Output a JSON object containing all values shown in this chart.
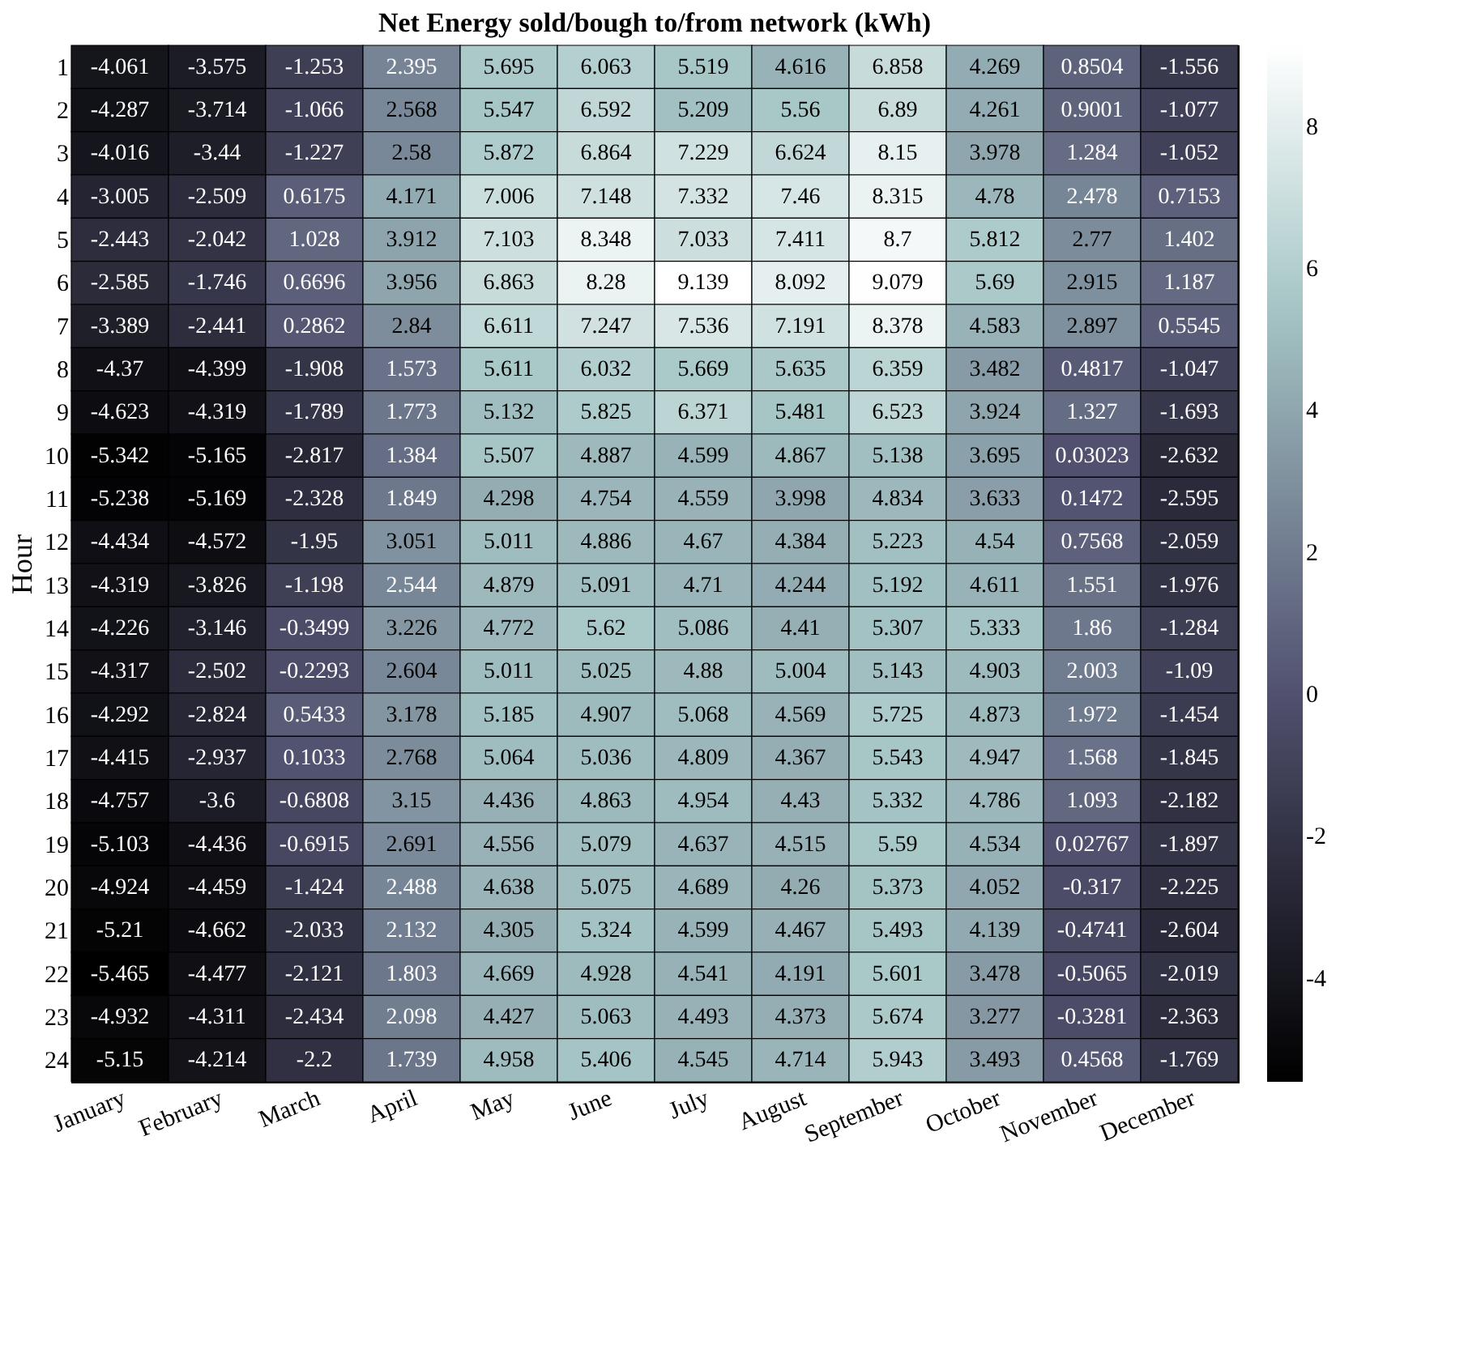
{
  "chart_data": {
    "type": "heatmap",
    "title": "Net Energy sold/bough to/from network (kWh)",
    "ylabel": "Hour",
    "categories": [
      "January",
      "February",
      "March",
      "April",
      "May",
      "June",
      "July",
      "August",
      "September",
      "October",
      "November",
      "December"
    ],
    "y_categories": [
      "1",
      "2",
      "3",
      "4",
      "5",
      "6",
      "7",
      "8",
      "9",
      "10",
      "11",
      "12",
      "13",
      "14",
      "15",
      "16",
      "17",
      "18",
      "19",
      "20",
      "21",
      "22",
      "23",
      "24"
    ],
    "cells": [
      [
        -4.061,
        -3.575,
        -1.253,
        2.395,
        5.695,
        6.063,
        5.519,
        4.616,
        6.858,
        4.269,
        0.8504,
        -1.556
      ],
      [
        -4.287,
        -3.714,
        -1.066,
        2.568,
        5.547,
        6.592,
        5.209,
        5.56,
        6.89,
        4.261,
        0.9001,
        -1.077
      ],
      [
        -4.016,
        -3.44,
        -1.227,
        2.58,
        5.872,
        6.864,
        7.229,
        6.624,
        8.15,
        3.978,
        1.284,
        -1.052
      ],
      [
        -3.005,
        -2.509,
        0.6175,
        4.171,
        7.006,
        7.148,
        7.332,
        7.46,
        8.315,
        4.78,
        2.478,
        0.7153
      ],
      [
        -2.443,
        -2.042,
        1.028,
        3.912,
        7.103,
        8.348,
        7.033,
        7.411,
        8.7,
        5.812,
        2.77,
        1.402
      ],
      [
        -2.585,
        -1.746,
        0.6696,
        3.956,
        6.863,
        8.28,
        9.139,
        8.092,
        9.079,
        5.69,
        2.915,
        1.187
      ],
      [
        -3.389,
        -2.441,
        0.2862,
        2.84,
        6.611,
        7.247,
        7.536,
        7.191,
        8.378,
        4.583,
        2.897,
        0.5545
      ],
      [
        -4.37,
        -4.399,
        -1.908,
        1.573,
        5.611,
        6.032,
        5.669,
        5.635,
        6.359,
        3.482,
        0.4817,
        -1.047
      ],
      [
        -4.623,
        -4.319,
        -1.789,
        1.773,
        5.132,
        5.825,
        6.371,
        5.481,
        6.523,
        3.924,
        1.327,
        -1.693
      ],
      [
        -5.342,
        -5.165,
        -2.817,
        1.384,
        5.507,
        4.887,
        4.599,
        4.867,
        5.138,
        3.695,
        0.03023,
        -2.632
      ],
      [
        -5.238,
        -5.169,
        -2.328,
        1.849,
        4.298,
        4.754,
        4.559,
        3.998,
        4.834,
        3.633,
        0.1472,
        -2.595
      ],
      [
        -4.434,
        -4.572,
        -1.95,
        3.051,
        5.011,
        4.886,
        4.67,
        4.384,
        5.223,
        4.54,
        0.7568,
        -2.059
      ],
      [
        -4.319,
        -3.826,
        -1.198,
        2.544,
        4.879,
        5.091,
        4.71,
        4.244,
        5.192,
        4.611,
        1.551,
        -1.976
      ],
      [
        -4.226,
        -3.146,
        -0.3499,
        3.226,
        4.772,
        5.62,
        5.086,
        4.41,
        5.307,
        5.333,
        1.86,
        -1.284
      ],
      [
        -4.317,
        -2.502,
        -0.2293,
        2.604,
        5.011,
        5.025,
        4.88,
        5.004,
        5.143,
        4.903,
        2.003,
        -1.09
      ],
      [
        -4.292,
        -2.824,
        0.5433,
        3.178,
        5.185,
        4.907,
        5.068,
        4.569,
        5.725,
        4.873,
        1.972,
        -1.454
      ],
      [
        -4.415,
        -2.937,
        0.1033,
        2.768,
        5.064,
        5.036,
        4.809,
        4.367,
        5.543,
        4.947,
        1.568,
        -1.845
      ],
      [
        -4.757,
        -3.6,
        -0.6808,
        3.15,
        4.436,
        4.863,
        4.954,
        4.43,
        5.332,
        4.786,
        1.093,
        -2.182
      ],
      [
        -5.103,
        -4.436,
        -0.6915,
        2.691,
        4.556,
        5.079,
        4.637,
        4.515,
        5.59,
        4.534,
        0.02767,
        -1.897
      ],
      [
        -4.924,
        -4.459,
        -1.424,
        2.488,
        4.638,
        5.075,
        4.689,
        4.26,
        5.373,
        4.052,
        -0.317,
        -2.225
      ],
      [
        -5.21,
        -4.662,
        -2.033,
        2.132,
        4.305,
        5.324,
        4.599,
        4.467,
        5.493,
        4.139,
        -0.4741,
        -2.604
      ],
      [
        -5.465,
        -4.477,
        -2.121,
        1.803,
        4.669,
        4.928,
        4.541,
        4.191,
        5.601,
        3.478,
        -0.5065,
        -2.019
      ],
      [
        -4.932,
        -4.311,
        -2.434,
        2.098,
        4.427,
        5.063,
        4.493,
        4.373,
        5.674,
        3.277,
        -0.3281,
        -2.363
      ],
      [
        -5.15,
        -4.214,
        -2.2,
        1.739,
        4.958,
        5.406,
        4.545,
        4.714,
        5.943,
        3.493,
        0.4568,
        -1.769
      ]
    ],
    "clim": [
      -5.465,
      9.139
    ],
    "cticks": [
      -4,
      -2,
      0,
      2,
      4,
      6,
      8
    ],
    "data_labels": true,
    "grid": false
  }
}
